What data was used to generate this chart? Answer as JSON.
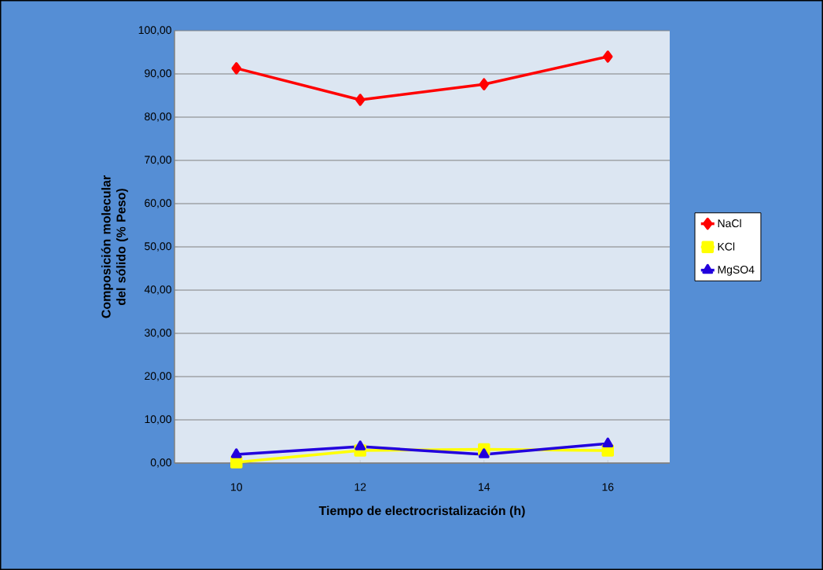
{
  "chart_data": {
    "type": "line",
    "xlabel": "Tiempo de electrocristalización  (h)",
    "ylabel": "Composición molecular del sólido (% Peso)",
    "categories": [
      "10",
      "12",
      "14",
      "16"
    ],
    "series": [
      {
        "name": "NaCl",
        "color": "#ff0000",
        "marker": "diamond",
        "values": [
          91.3,
          84.0,
          87.6,
          94.0
        ]
      },
      {
        "name": "KCl",
        "color": "#ffff00",
        "marker": "square",
        "values": [
          0.2,
          2.9,
          3.2,
          2.9
        ]
      },
      {
        "name": "MgSO4",
        "color": "#2200dd",
        "marker": "triangle",
        "values": [
          2.0,
          3.8,
          2.0,
          4.5
        ]
      }
    ],
    "ylim": [
      0,
      100
    ],
    "yticks": [
      {
        "value": 0,
        "label": "0,00"
      },
      {
        "value": 10,
        "label": "10,00"
      },
      {
        "value": 20,
        "label": "20,00"
      },
      {
        "value": 30,
        "label": "30,00"
      },
      {
        "value": 40,
        "label": "40,00"
      },
      {
        "value": 50,
        "label": "50,00"
      },
      {
        "value": 60,
        "label": "60,00"
      },
      {
        "value": 70,
        "label": "70,00"
      },
      {
        "value": 80,
        "label": "80,00"
      },
      {
        "value": 90,
        "label": "90,00"
      },
      {
        "value": 100,
        "label": "100,00"
      }
    ],
    "grid": "y",
    "legend": "right",
    "line_style": "solid"
  }
}
